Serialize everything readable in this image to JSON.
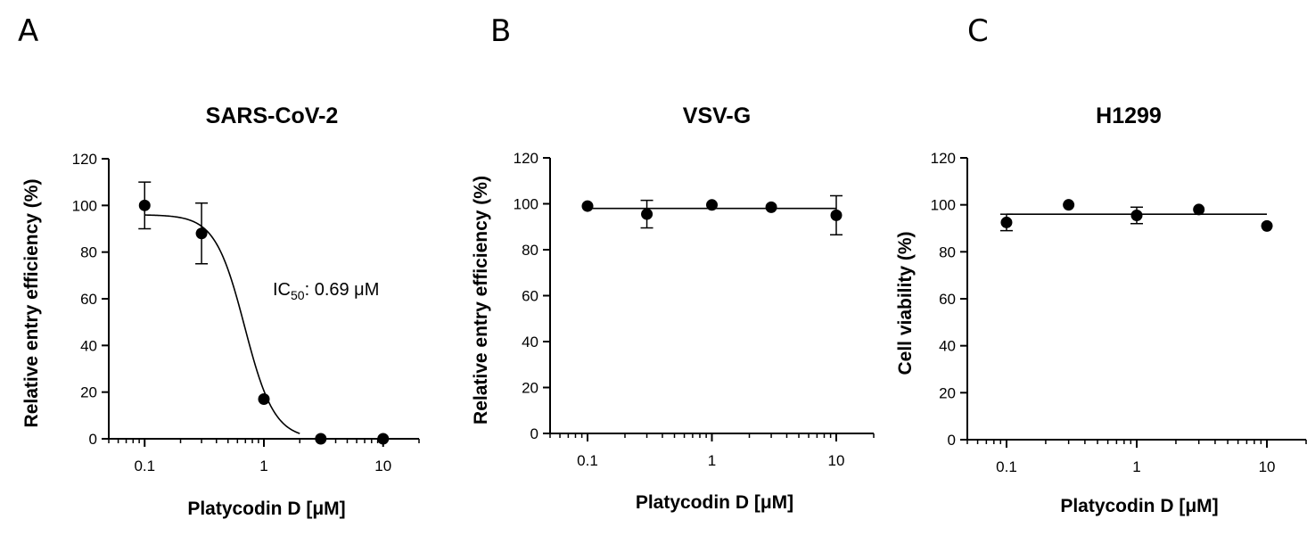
{
  "chart_data": [
    {
      "panel": "A",
      "type": "scatter",
      "title": "SARS-CoV-2",
      "xlabel": "Platycodin D [μM]",
      "ylabel": "Relative entry efficiency (%)",
      "xscale": "log",
      "xlim": [
        0.05,
        20
      ],
      "ylim": [
        0,
        120
      ],
      "xticks": [
        0.1,
        1,
        10
      ],
      "xtick_labels": [
        "0.1",
        "1",
        "10"
      ],
      "yticks": [
        0,
        20,
        40,
        60,
        80,
        100,
        120
      ],
      "ytick_labels": [
        "0",
        "20",
        "40",
        "60",
        "80",
        "100",
        "120"
      ],
      "grid": false,
      "series": [
        {
          "x": [
            0.1,
            0.3,
            1,
            3,
            10
          ],
          "y": [
            100,
            88,
            17,
            0,
            0
          ],
          "error": [
            10,
            13,
            0,
            0,
            0
          ]
        }
      ],
      "fit": {
        "model": "sigmoid",
        "top": 96,
        "bottom": 0,
        "ic50": 0.69,
        "hill": 3.5,
        "x_range": [
          0.1,
          2
        ]
      },
      "annotation": {
        "prefix": "IC",
        "subscript": "50",
        "suffix": ": 0.69 μM"
      }
    },
    {
      "panel": "B",
      "type": "scatter",
      "title": "VSV-G",
      "xlabel": "Platycodin D [μM]",
      "ylabel": "Relative entry efficiency (%)",
      "xscale": "log",
      "xlim": [
        0.05,
        20
      ],
      "ylim": [
        0,
        120
      ],
      "xticks": [
        0.1,
        1,
        10
      ],
      "xtick_labels": [
        "0.1",
        "1",
        "10"
      ],
      "yticks": [
        0,
        20,
        40,
        60,
        80,
        100,
        120
      ],
      "ytick_labels": [
        "0",
        "20",
        "40",
        "60",
        "80",
        "100",
        "120"
      ],
      "grid": false,
      "series": [
        {
          "x": [
            0.1,
            0.3,
            1,
            3,
            10
          ],
          "y": [
            99,
            95.5,
            99.5,
            98.5,
            95
          ],
          "error": [
            0,
            6,
            0,
            0,
            8.5
          ]
        }
      ],
      "fit": {
        "model": "flat",
        "y": 98,
        "x_range": [
          0.1,
          10
        ]
      }
    },
    {
      "panel": "C",
      "type": "scatter",
      "title": "H1299",
      "xlabel": "Platycodin D [μM]",
      "ylabel": "Cell viability (%)",
      "xscale": "log",
      "xlim": [
        0.05,
        20
      ],
      "ylim": [
        0,
        120
      ],
      "xticks": [
        0.1,
        1,
        10
      ],
      "xtick_labels": [
        "0.1",
        "1",
        "10"
      ],
      "yticks": [
        0,
        20,
        40,
        60,
        80,
        100,
        120
      ],
      "ytick_labels": [
        "0",
        "20",
        "40",
        "60",
        "80",
        "100",
        "120"
      ],
      "grid": false,
      "series": [
        {
          "x": [
            0.1,
            0.3,
            1,
            3,
            10
          ],
          "y": [
            92.5,
            100,
            95.5,
            98,
            91
          ],
          "error": [
            3.5,
            0,
            3.5,
            0,
            0
          ]
        }
      ],
      "fit": {
        "model": "flat",
        "y": 96,
        "x_range": [
          0.1,
          10
        ]
      }
    }
  ]
}
